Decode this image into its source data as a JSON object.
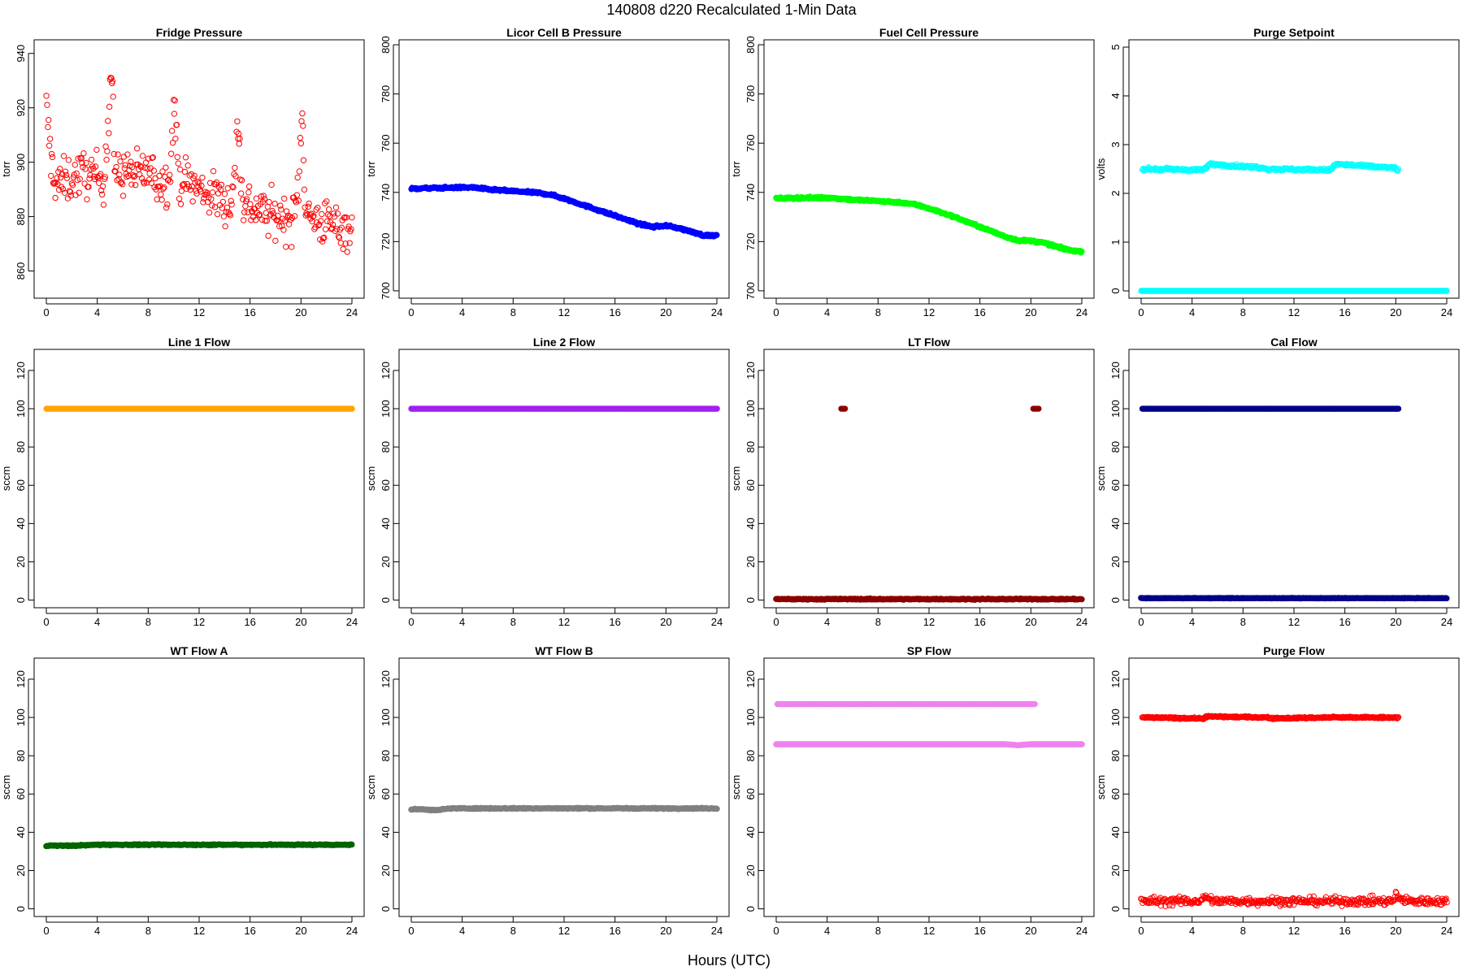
{
  "figure": {
    "title": "140808   d220   Recalculated 1-Min Data",
    "xlabel": "Hours (UTC)"
  },
  "chart_data": [
    {
      "type": "scatter",
      "title": "Fridge Pressure",
      "ylabel": "torr",
      "xlim": [
        0,
        24
      ],
      "xticks": [
        0,
        4,
        8,
        12,
        16,
        20,
        24
      ],
      "ylim": [
        850,
        945
      ],
      "yticks": [
        860,
        880,
        900,
        920,
        940
      ],
      "series": [
        {
          "color": "#ff0000",
          "marker": "open-circle",
          "noise": 6,
          "x": [
            0,
            0.3,
            0.6,
            1,
            1.5,
            2,
            2.5,
            3,
            3.5,
            4,
            4.5,
            4.9,
            5,
            5.1,
            5.2,
            5.3,
            5.5,
            5.8,
            6.5,
            7,
            7.5,
            8,
            8.5,
            9,
            9.5,
            9.8,
            10,
            10.1,
            10.2,
            10.3,
            10.5,
            11,
            11.5,
            12,
            12.5,
            13,
            13.5,
            14,
            14.5,
            14.8,
            15,
            15.1,
            15.2,
            15.3,
            15.5,
            16,
            16.5,
            17,
            17.5,
            18,
            18.5,
            19,
            19.5,
            19.8,
            20,
            20.1,
            20.2,
            20.3,
            20.5,
            21,
            21.5,
            22,
            22.5,
            23,
            23.5,
            24
          ],
          "y": [
            920,
            904,
            894,
            892,
            893,
            894,
            895,
            896,
            895,
            895,
            894,
            915,
            930,
            932,
            925,
            905,
            895,
            896,
            897,
            895,
            896,
            897,
            894,
            893,
            892,
            905,
            918,
            920,
            912,
            898,
            894,
            893,
            892,
            890,
            889,
            888,
            887,
            886,
            885,
            895,
            912,
            914,
            905,
            892,
            885,
            884,
            883,
            882,
            881,
            880,
            880,
            879,
            880,
            892,
            912,
            920,
            905,
            888,
            880,
            879,
            878,
            878,
            877,
            877,
            876,
            876
          ]
        }
      ]
    },
    {
      "type": "scatter",
      "title": "Licor Cell B Pressure",
      "ylabel": "torr",
      "xlim": [
        0,
        24
      ],
      "xticks": [
        0,
        4,
        8,
        12,
        16,
        20,
        24
      ],
      "ylim": [
        697,
        802
      ],
      "yticks": [
        700,
        720,
        740,
        760,
        780,
        800
      ],
      "series": [
        {
          "color": "#0000ff",
          "marker": "filled",
          "noise": 0.3,
          "x": [
            0,
            2,
            4,
            5,
            6,
            8,
            10,
            11,
            12,
            14,
            16,
            18,
            19,
            20,
            21,
            22,
            23,
            24
          ],
          "y": [
            741.5,
            741.8,
            742,
            742,
            741.2,
            740.5,
            739.8,
            739,
            737.5,
            734,
            730.5,
            727,
            726,
            726.5,
            725.5,
            724,
            722.5,
            722.5
          ]
        }
      ]
    },
    {
      "type": "scatter",
      "title": "Fuel Cell Pressure",
      "ylabel": "torr",
      "xlim": [
        0,
        24
      ],
      "xticks": [
        0,
        4,
        8,
        12,
        16,
        20,
        24
      ],
      "ylim": [
        697,
        802
      ],
      "yticks": [
        700,
        720,
        740,
        760,
        780,
        800
      ],
      "series": [
        {
          "color": "#00ff00",
          "marker": "filled",
          "noise": 0.3,
          "x": [
            0,
            2,
            4,
            5,
            6,
            8,
            10,
            11,
            12,
            14,
            16,
            18,
            19,
            20,
            21,
            22,
            23,
            24
          ],
          "y": [
            737.5,
            737.8,
            737.8,
            737.5,
            737,
            736.5,
            735.8,
            735,
            733.5,
            730,
            726,
            722,
            720.5,
            720.3,
            719.5,
            718,
            716.5,
            716
          ]
        }
      ]
    },
    {
      "type": "scatter",
      "title": "Purge Setpoint",
      "ylabel": "volts",
      "xlim": [
        0,
        24
      ],
      "xticks": [
        0,
        4,
        8,
        12,
        16,
        20,
        24
      ],
      "ylim": [
        -0.15,
        5.15
      ],
      "yticks": [
        0,
        1,
        2,
        3,
        4,
        5
      ],
      "series": [
        {
          "color": "#00ffff",
          "marker": "open-circle",
          "noise": 0.02,
          "x": [
            0.1,
            4.9,
            5.0,
            5.1,
            5.2,
            5.3,
            5.4,
            9.9,
            10.0,
            10.1,
            14.9,
            15.0,
            15.1,
            15.2,
            15.3,
            19.9,
            20.0,
            20.1,
            20.2
          ],
          "y": [
            2.5,
            2.48,
            2.52,
            2.5,
            2.55,
            2.58,
            2.6,
            2.52,
            2.48,
            2.5,
            2.48,
            2.52,
            2.55,
            2.57,
            2.6,
            2.52,
            2.5,
            2.48,
            2.5
          ]
        },
        {
          "color": "#00ffff",
          "marker": "filled",
          "noise": 0,
          "x": [
            0,
            24
          ],
          "y": [
            0,
            0
          ]
        }
      ]
    },
    {
      "type": "scatter",
      "title": "Line 1 Flow",
      "ylabel": "sccm",
      "xlim": [
        0,
        24
      ],
      "xticks": [
        0,
        4,
        8,
        12,
        16,
        20,
        24
      ],
      "ylim": [
        -4,
        131
      ],
      "yticks": [
        0,
        20,
        40,
        60,
        80,
        100,
        120
      ],
      "series": [
        {
          "color": "#ffa500",
          "marker": "filled",
          "noise": 0,
          "x": [
            0,
            24
          ],
          "y": [
            100,
            100
          ]
        }
      ]
    },
    {
      "type": "scatter",
      "title": "Line 2 Flow",
      "ylabel": "sccm",
      "xlim": [
        0,
        24
      ],
      "xticks": [
        0,
        4,
        8,
        12,
        16,
        20,
        24
      ],
      "ylim": [
        -4,
        131
      ],
      "yticks": [
        0,
        20,
        40,
        60,
        80,
        100,
        120
      ],
      "series": [
        {
          "color": "#a020f0",
          "marker": "filled",
          "noise": 0,
          "x": [
            0,
            24
          ],
          "y": [
            100,
            100
          ]
        }
      ]
    },
    {
      "type": "scatter",
      "title": "LT Flow",
      "ylabel": "sccm",
      "xlim": [
        0,
        24
      ],
      "xticks": [
        0,
        4,
        8,
        12,
        16,
        20,
        24
      ],
      "ylim": [
        -4,
        131
      ],
      "yticks": [
        0,
        20,
        40,
        60,
        80,
        100,
        120
      ],
      "series": [
        {
          "color": "#8b0000",
          "marker": "filled",
          "noise": 0,
          "x": [
            5.1,
            5.2,
            5.3,
            5.4
          ],
          "y": [
            100,
            100,
            100,
            100
          ]
        },
        {
          "color": "#8b0000",
          "marker": "filled",
          "noise": 0,
          "x": [
            20.2,
            20.3,
            20.4,
            20.5,
            20.6
          ],
          "y": [
            100,
            100,
            100,
            100,
            100
          ]
        },
        {
          "color": "#8b0000",
          "marker": "filled",
          "noise": 0.2,
          "x": [
            0,
            24
          ],
          "y": [
            0.5,
            0.5
          ]
        }
      ]
    },
    {
      "type": "scatter",
      "title": "Cal Flow",
      "ylabel": "sccm",
      "xlim": [
        0,
        24
      ],
      "xticks": [
        0,
        4,
        8,
        12,
        16,
        20,
        24
      ],
      "ylim": [
        -4,
        131
      ],
      "yticks": [
        0,
        20,
        40,
        60,
        80,
        100,
        120
      ],
      "series": [
        {
          "color": "#00008b",
          "marker": "filled",
          "noise": 0,
          "x": [
            0.1,
            0.2,
            0.3,
            4.9,
            5.0,
            5.1,
            5.2,
            5.4,
            5.5,
            9.9,
            10.0,
            10.1,
            10.2,
            14.9,
            15.0,
            15.1,
            15.2,
            15.3,
            19.9,
            20.0,
            20.1,
            20.2
          ],
          "y": [
            100,
            100,
            100,
            100,
            100,
            100,
            100,
            100,
            100,
            100,
            100,
            100,
            100,
            100,
            100,
            100,
            100,
            100,
            100,
            100,
            100,
            100
          ]
        },
        {
          "color": "#00008b",
          "marker": "filled",
          "noise": 0.1,
          "x": [
            0,
            24
          ],
          "y": [
            1,
            1
          ]
        }
      ]
    },
    {
      "type": "scatter",
      "title": "WT Flow A",
      "ylabel": "sccm",
      "xlim": [
        0,
        24
      ],
      "xticks": [
        0,
        4,
        8,
        12,
        16,
        20,
        24
      ],
      "ylim": [
        -4,
        131
      ],
      "yticks": [
        0,
        20,
        40,
        60,
        80,
        100,
        120
      ],
      "series": [
        {
          "color": "#006400",
          "marker": "filled",
          "noise": 0.2,
          "x": [
            0,
            2,
            4,
            8,
            12,
            16,
            20,
            24
          ],
          "y": [
            33,
            33,
            33.5,
            33.5,
            33.5,
            33.5,
            33.5,
            33.5
          ]
        }
      ]
    },
    {
      "type": "scatter",
      "title": "WT Flow B",
      "ylabel": "sccm",
      "xlim": [
        0,
        24
      ],
      "xticks": [
        0,
        4,
        8,
        12,
        16,
        20,
        24
      ],
      "ylim": [
        -4,
        131
      ],
      "yticks": [
        0,
        20,
        40,
        60,
        80,
        100,
        120
      ],
      "series": [
        {
          "color": "#808080",
          "marker": "filled",
          "noise": 0.2,
          "x": [
            0,
            1,
            2,
            3,
            4,
            8,
            12,
            16,
            20,
            24
          ],
          "y": [
            52,
            52,
            51.5,
            52.5,
            52.5,
            52.5,
            52.5,
            52.5,
            52.5,
            52.5
          ]
        }
      ]
    },
    {
      "type": "scatter",
      "title": "SP Flow",
      "ylabel": "sccm",
      "xlim": [
        0,
        24
      ],
      "xticks": [
        0,
        4,
        8,
        12,
        16,
        20,
        24
      ],
      "ylim": [
        -4,
        131
      ],
      "yticks": [
        0,
        20,
        40,
        60,
        80,
        100,
        120
      ],
      "series": [
        {
          "color": "#ee82ee",
          "marker": "filled",
          "noise": 0,
          "x": [
            0.1,
            0.2,
            5.0,
            5.1,
            5.2,
            5.3,
            10.0,
            10.1,
            10.2,
            15.0,
            15.1,
            15.2,
            15.3,
            20.0,
            20.1,
            20.2,
            20.3
          ],
          "y": [
            107,
            107,
            107,
            107,
            107,
            107,
            107,
            107,
            107,
            107,
            107,
            107,
            107,
            107,
            107,
            107,
            107
          ]
        },
        {
          "color": "#ee82ee",
          "marker": "filled",
          "noise": 0,
          "x": [
            0,
            5,
            10,
            15,
            18,
            19,
            20,
            24
          ],
          "y": [
            86,
            86,
            86,
            86,
            86,
            85.5,
            86,
            86
          ]
        }
      ]
    },
    {
      "type": "scatter",
      "title": "Purge Flow",
      "ylabel": "sccm",
      "xlim": [
        0,
        24
      ],
      "xticks": [
        0,
        4,
        8,
        12,
        16,
        20,
        24
      ],
      "ylim": [
        -4,
        131
      ],
      "yticks": [
        0,
        20,
        40,
        60,
        80,
        100,
        120
      ],
      "series": [
        {
          "color": "#ff0000",
          "marker": "open-circle",
          "noise": 0.3,
          "x": [
            0.1,
            0.2,
            4.9,
            5.0,
            5.1,
            5.2,
            5.3,
            9.9,
            10.0,
            10.1,
            14.9,
            15.0,
            15.1,
            15.2,
            15.3,
            19.9,
            20.0,
            20.1,
            20.2
          ],
          "y": [
            100,
            100,
            99.5,
            100,
            100.5,
            100,
            100.5,
            100,
            100,
            99.5,
            100,
            100,
            100.5,
            100,
            100,
            100,
            100,
            99.5,
            100
          ]
        },
        {
          "color": "#ff0000",
          "marker": "open-circle",
          "noise": 1.5,
          "x": [
            0,
            4.8,
            5,
            5.3,
            6,
            10,
            15,
            19.8,
            20,
            20.4,
            21,
            24
          ],
          "y": [
            4,
            4,
            7,
            5,
            4,
            4,
            4,
            4,
            7,
            5,
            4,
            4
          ]
        }
      ]
    }
  ]
}
